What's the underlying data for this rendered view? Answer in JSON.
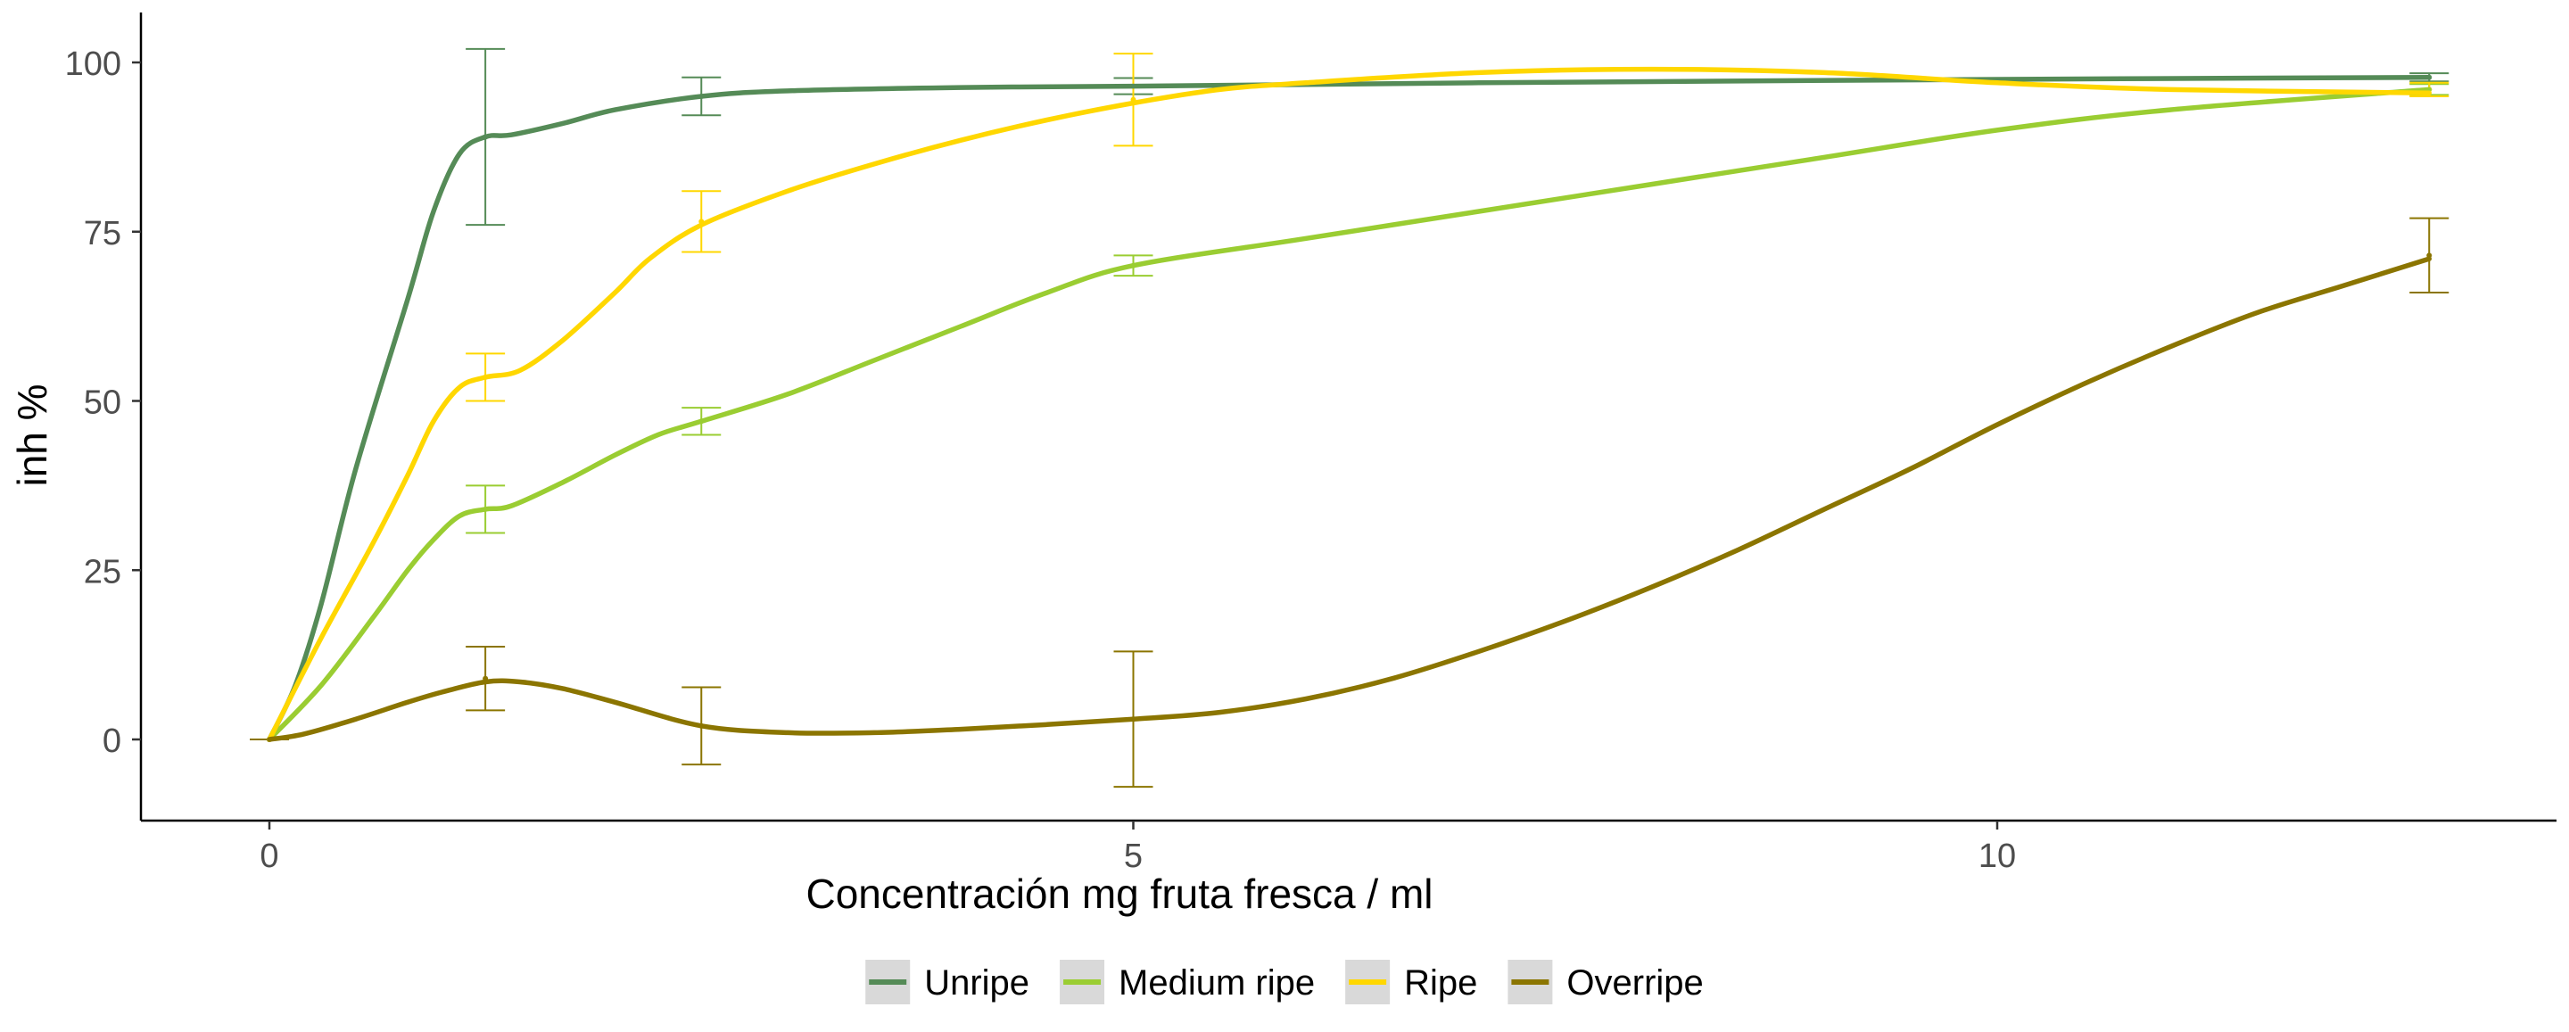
{
  "chart_data": {
    "type": "line",
    "title": "",
    "xlabel": "Concentración mg fruta fresca / ml",
    "ylabel": "inh %",
    "xlim": [
      -1.5,
      13.5
    ],
    "ylim": [
      -12,
      107
    ],
    "x_ticks": [
      0,
      5,
      10
    ],
    "y_ticks": [
      0,
      25,
      50,
      75,
      100
    ],
    "grid": false,
    "legend_position": "bottom",
    "series": [
      {
        "name": "Unripe",
        "color": "#558b57",
        "points": [
          [
            0,
            0
          ],
          [
            0.15,
            8
          ],
          [
            0.3,
            20
          ],
          [
            0.5,
            40
          ],
          [
            0.8,
            65
          ],
          [
            0.95,
            78
          ],
          [
            1.1,
            86.5
          ],
          [
            1.25,
            89
          ],
          [
            1.4,
            89.3
          ],
          [
            1.7,
            91
          ],
          [
            2.0,
            93
          ],
          [
            2.5,
            95
          ],
          [
            3.0,
            95.8
          ],
          [
            4.0,
            96.3
          ],
          [
            5.0,
            96.5
          ],
          [
            7.0,
            97
          ],
          [
            10.0,
            97.5
          ],
          [
            12.5,
            97.8
          ]
        ],
        "errorbars": [
          {
            "x": 0,
            "y": 0,
            "err": 0
          },
          {
            "x": 1.25,
            "y": 89,
            "err": 13
          },
          {
            "x": 2.5,
            "y": 95,
            "err": 2.8
          },
          {
            "x": 5.0,
            "y": 96.5,
            "err": 1.2
          },
          {
            "x": 12.5,
            "y": 97.8,
            "err": 0.6
          }
        ]
      },
      {
        "name": "Medium ripe",
        "color": "#9acd32",
        "points": [
          [
            0,
            0
          ],
          [
            0.3,
            8
          ],
          [
            0.6,
            18
          ],
          [
            0.8,
            25
          ],
          [
            0.95,
            29.5
          ],
          [
            1.1,
            33
          ],
          [
            1.25,
            34
          ],
          [
            1.4,
            34.5
          ],
          [
            1.7,
            38
          ],
          [
            2.0,
            42
          ],
          [
            2.25,
            45
          ],
          [
            2.5,
            47
          ],
          [
            3.0,
            51
          ],
          [
            3.5,
            56
          ],
          [
            4.0,
            61
          ],
          [
            4.5,
            66
          ],
          [
            5.0,
            70
          ],
          [
            6.0,
            74
          ],
          [
            7.0,
            78
          ],
          [
            8.0,
            82
          ],
          [
            9.0,
            86
          ],
          [
            10.0,
            90
          ],
          [
            11.0,
            93
          ],
          [
            12.5,
            96
          ]
        ],
        "errorbars": [
          {
            "x": 0,
            "y": 0,
            "err": 0
          },
          {
            "x": 1.25,
            "y": 34,
            "err": 3.5
          },
          {
            "x": 2.5,
            "y": 47,
            "err": 2
          },
          {
            "x": 5.0,
            "y": 70,
            "err": 1.5
          },
          {
            "x": 12.5,
            "y": 96,
            "err": 0.8
          }
        ]
      },
      {
        "name": "Ripe",
        "color": "#ffd700",
        "points": [
          [
            0,
            0
          ],
          [
            0.3,
            15
          ],
          [
            0.6,
            29
          ],
          [
            0.8,
            39
          ],
          [
            0.95,
            47
          ],
          [
            1.1,
            52
          ],
          [
            1.25,
            53.5
          ],
          [
            1.45,
            54.5
          ],
          [
            1.7,
            59
          ],
          [
            2.0,
            66
          ],
          [
            2.2,
            71
          ],
          [
            2.5,
            76
          ],
          [
            3.0,
            81
          ],
          [
            3.5,
            85
          ],
          [
            4.0,
            88.5
          ],
          [
            4.5,
            91.5
          ],
          [
            5.0,
            94
          ],
          [
            5.5,
            96
          ],
          [
            6.0,
            97
          ],
          [
            7.0,
            98.5
          ],
          [
            8.0,
            99
          ],
          [
            9.0,
            98.5
          ],
          [
            10.0,
            97
          ],
          [
            11.0,
            96
          ],
          [
            12.5,
            95.5
          ]
        ],
        "errorbars": [
          {
            "x": 0,
            "y": 0,
            "err": 0
          },
          {
            "x": 1.25,
            "y": 53.5,
            "err": 3.5
          },
          {
            "x": 2.5,
            "y": 76.5,
            "err": 4.5
          },
          {
            "x": 5.0,
            "y": 94.5,
            "err": 6.8
          },
          {
            "x": 12.5,
            "y": 96,
            "err": 1
          }
        ]
      },
      {
        "name": "Overripe",
        "color": "#8b7500",
        "points": [
          [
            0,
            0
          ],
          [
            0.2,
            0.8
          ],
          [
            0.5,
            3
          ],
          [
            0.8,
            5.5
          ],
          [
            1.0,
            7
          ],
          [
            1.25,
            8.5
          ],
          [
            1.45,
            8.5
          ],
          [
            1.7,
            7.5
          ],
          [
            2.0,
            5.5
          ],
          [
            2.5,
            2
          ],
          [
            3.0,
            1
          ],
          [
            3.5,
            1
          ],
          [
            4.0,
            1.5
          ],
          [
            4.5,
            2.2
          ],
          [
            5.0,
            3
          ],
          [
            5.5,
            4
          ],
          [
            6.0,
            6
          ],
          [
            6.5,
            9
          ],
          [
            7.0,
            13
          ],
          [
            7.5,
            17.5
          ],
          [
            8.0,
            22.5
          ],
          [
            8.5,
            28
          ],
          [
            9.0,
            34
          ],
          [
            9.5,
            40
          ],
          [
            10.0,
            46.5
          ],
          [
            10.5,
            52.5
          ],
          [
            11.0,
            58
          ],
          [
            11.5,
            63
          ],
          [
            12.0,
            67
          ],
          [
            12.5,
            71
          ]
        ],
        "errorbars": [
          {
            "x": 0,
            "y": 0,
            "err": 0
          },
          {
            "x": 1.25,
            "y": 9,
            "err": 4.7
          },
          {
            "x": 2.5,
            "y": 2,
            "err": 5.7
          },
          {
            "x": 5.0,
            "y": 3,
            "err": 10
          },
          {
            "x": 12.5,
            "y": 71.5,
            "err": 5.5
          }
        ]
      }
    ]
  }
}
